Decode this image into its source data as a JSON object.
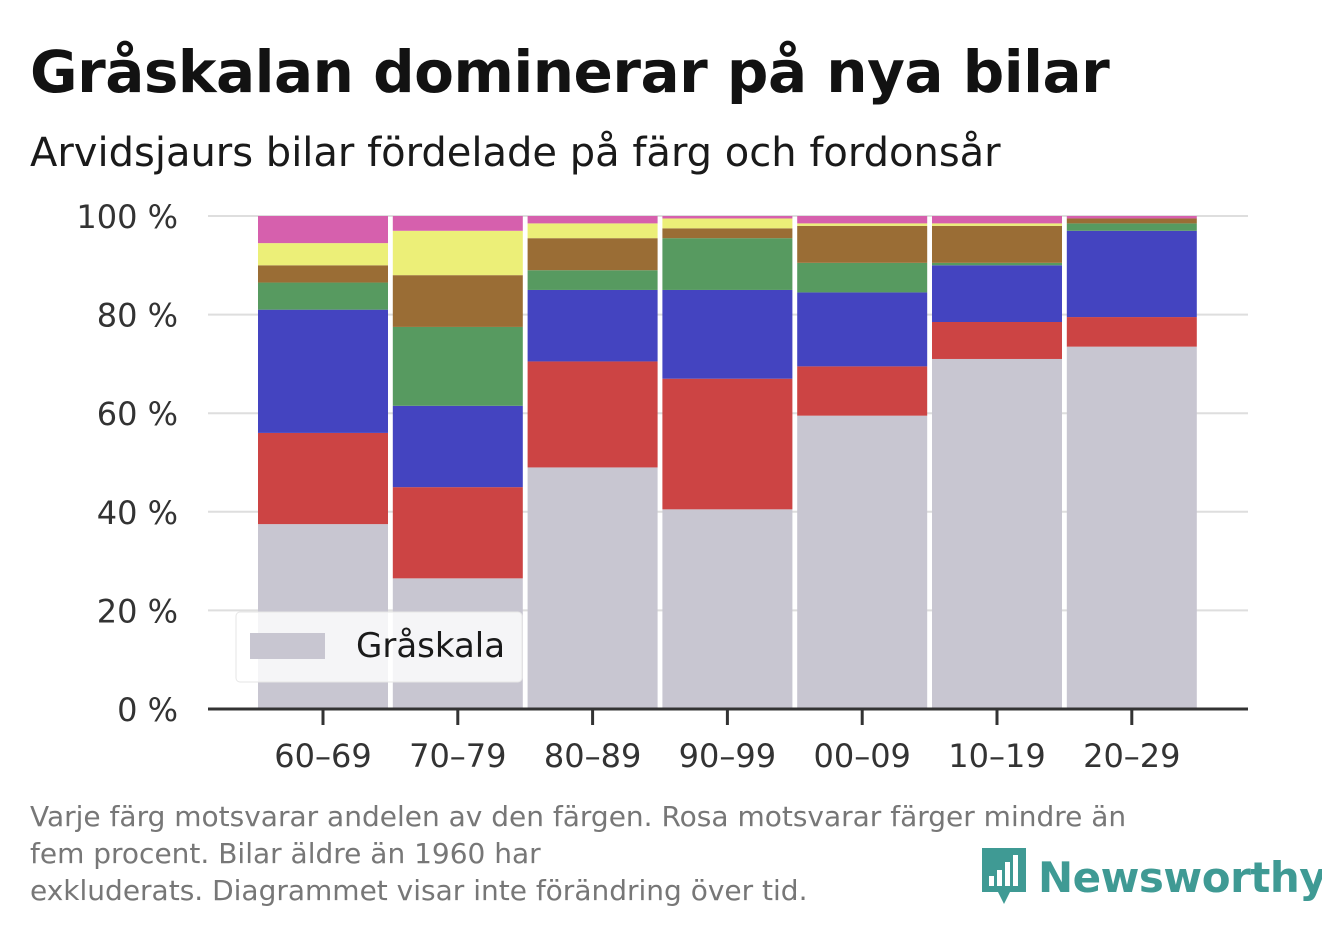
{
  "title": "Gråskalan dominerar på nya bilar",
  "subtitle": "Arvidsjaurs bilar fördelade på färg och fordonsår",
  "footnote": [
    "Varje färg motsvarar andelen av den färgen. Rosa motsvarar färger mindre än",
    "fem procent. Bilar äldre än 1960 har",
    "exkluderats. Diagrammet visar inte förändring över tid."
  ],
  "brand": {
    "name": "Newsworthy",
    "icon": "newsworthy-logo-icon",
    "color": "#3f9a94"
  },
  "legend": {
    "label": "Gråskala",
    "placement": "bottom-left"
  },
  "chart_data": {
    "type": "bar",
    "stacked": true,
    "categories": [
      "60–69",
      "70–79",
      "80–89",
      "90–99",
      "00–09",
      "10–19",
      "20–29"
    ],
    "ylim": [
      0,
      100
    ],
    "yticks": [
      0,
      20,
      40,
      60,
      80,
      100
    ],
    "ytick_labels": [
      "0 %",
      "20 %",
      "40 %",
      "60 %",
      "80 %",
      "100 %"
    ],
    "grid": true,
    "series": [
      {
        "name": "Gråskala",
        "color": "#c8c6d1",
        "values": [
          37.5,
          26.5,
          49,
          40.5,
          59.5,
          71,
          73.5
        ]
      },
      {
        "color": "#cc4444",
        "values": [
          18.5,
          18.5,
          21.5,
          26.5,
          10,
          7.5,
          6
        ]
      },
      {
        "color": "#4444c0",
        "values": [
          25,
          16.5,
          14.5,
          18,
          15,
          11.5,
          17.5
        ]
      },
      {
        "color": "#579a60",
        "values": [
          5.5,
          16,
          4,
          10.5,
          6,
          0.5,
          1.5
        ]
      },
      {
        "color": "#9a6d35",
        "values": [
          3.5,
          10.5,
          6.5,
          2,
          7.5,
          7.5,
          1
        ]
      },
      {
        "color": "#ecef78",
        "values": [
          4.5,
          9,
          3,
          2,
          0.5,
          0.5,
          0
        ]
      },
      {
        "color": "#d660ad",
        "values": [
          5.5,
          3,
          1.5,
          0.5,
          1.5,
          1.5,
          0.5
        ]
      }
    ]
  }
}
